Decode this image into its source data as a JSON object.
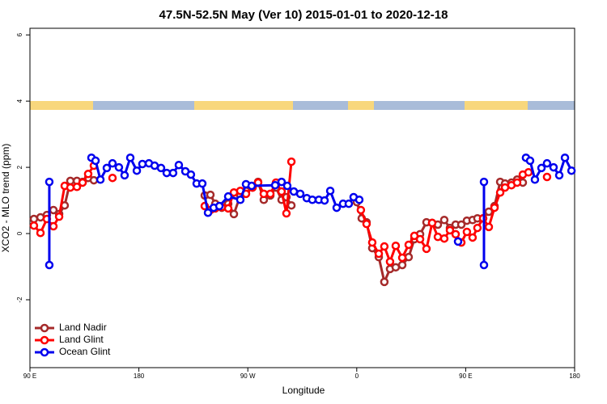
{
  "chart_data": {
    "type": "line",
    "title": "47.5N-52.5N May (Ver 10)   2015-01-01 to 2020-12-18",
    "x_label": "Longitude",
    "y_label": "XCO2 - MLO trend (ppm)",
    "xlim": [
      90,
      540
    ],
    "xticks": [
      {
        "value": 90,
        "label": "90 E"
      },
      {
        "value": 180,
        "label": "180"
      },
      {
        "value": 270,
        "label": "90 W"
      },
      {
        "value": 360,
        "label": "0"
      },
      {
        "value": 450,
        "label": "90 E"
      },
      {
        "value": 540,
        "label": "180"
      }
    ],
    "ylim": [
      -4.05,
      6.2
    ],
    "yticks": [
      -2,
      0,
      2,
      4,
      6
    ],
    "legend": "bottom-left",
    "series": [
      {
        "name": "Land Nadir",
        "color": "#a52a2a",
        "x": [
          93.3,
          98.7,
          104.0,
          109.4,
          114.1,
          118.7,
          123.4,
          128.8,
          133.5,
          138.1,
          142.8,
          null,
          234.4,
          239.1,
          243.1,
          248.5,
          253.8,
          258.5,
          263.8,
          268.5,
          273.9,
          278.5,
          283.2,
          288.6,
          293.3,
          297.9,
          301.9,
          306.0,
          null,
          360.1,
          364.1,
          368.1,
          372.8,
          378.2,
          382.8,
          387.5,
          392.2,
          397.6,
          402.9,
          407.6,
          412.3,
          417.6,
          422.3,
          427.0,
          432.3,
          437.0,
          441.7,
          446.4,
          451.0,
          455.7,
          459.7,
          464.4,
          469.1,
          473.8,
          478.5,
          482.5,
          487.8,
          492.5,
          497.2
        ],
        "values": [
          0.44,
          0.49,
          0.56,
          0.71,
          0.59,
          0.85,
          1.59,
          1.59,
          1.56,
          1.68,
          1.61,
          null,
          1.15,
          1.17,
          0.9,
          0.78,
          0.9,
          0.59,
          1.15,
          1.29,
          1.39,
          1.56,
          1.02,
          1.15,
          1.39,
          1.02,
          1.1,
          0.85,
          null,
          0.95,
          0.46,
          0.34,
          -0.44,
          -0.71,
          -1.46,
          -1.07,
          -1.02,
          -0.95,
          -0.71,
          -0.17,
          -0.02,
          0.34,
          0.32,
          0.27,
          0.41,
          0.17,
          0.27,
          0.27,
          0.39,
          0.41,
          0.46,
          0.46,
          0.66,
          0.83,
          1.56,
          1.51,
          1.54,
          1.63,
          1.54
        ]
      },
      {
        "name": "Land Glint",
        "color": "#ff0000",
        "x": [
          93.3,
          98.7,
          104.0,
          109.4,
          114.1,
          118.7,
          123.4,
          128.8,
          133.5,
          138.1,
          142.8,
          null,
          158.2,
          null,
          234.4,
          239.1,
          243.1,
          248.5,
          253.8,
          258.5,
          263.8,
          268.5,
          273.9,
          278.5,
          283.2,
          288.6,
          293.3,
          297.9,
          301.9,
          306.0,
          null,
          363.4,
          368.1,
          372.8,
          378.2,
          382.8,
          387.5,
          392.2,
          397.6,
          402.9,
          407.6,
          412.3,
          417.6,
          422.3,
          427.0,
          432.3,
          437.0,
          441.7,
          446.4,
          451.0,
          455.7,
          459.7,
          464.4,
          469.1,
          473.8,
          478.5,
          482.5,
          487.8,
          492.5,
          497.2,
          501.9,
          null,
          517.2
        ],
        "values": [
          0.24,
          0.02,
          0.44,
          0.22,
          0.51,
          1.44,
          1.39,
          1.41,
          1.54,
          1.8,
          2.05,
          null,
          1.68,
          null,
          0.83,
          0.71,
          0.76,
          0.8,
          0.76,
          1.24,
          1.29,
          1.2,
          1.39,
          1.54,
          1.2,
          1.2,
          1.54,
          1.27,
          0.61,
          2.17,
          null,
          0.71,
          0.29,
          -0.27,
          -0.61,
          -0.39,
          -0.85,
          -0.37,
          -0.73,
          -0.34,
          -0.07,
          -0.17,
          -0.46,
          0.32,
          -0.1,
          -0.15,
          0.1,
          -0.02,
          -0.27,
          0.05,
          -0.12,
          0.17,
          0.46,
          0.2,
          0.78,
          1.24,
          1.39,
          1.46,
          1.54,
          1.78,
          1.85,
          null,
          1.71
        ]
      },
      {
        "name": "Ocean Glint",
        "color": "#0000ee",
        "x": [
          106.0,
          106.0,
          null,
          140.8,
          144.2,
          148.2,
          153.5,
          158.2,
          163.5,
          168.2,
          172.9,
          178.3,
          182.9,
          188.3,
          193.0,
          198.3,
          203.0,
          208.3,
          213.0,
          218.4,
          223.0,
          227.7,
          232.4,
          237.1,
          241.8,
          246.5,
          253.8,
          263.8,
          268.5,
          273.2,
          292.6,
          297.9,
          302.6,
          308.0,
          313.3,
          318.7,
          323.3,
          328.7,
          333.4,
          338.1,
          343.4,
          348.7,
          353.4,
          357.4,
          362.1,
          null,
          443.7,
          null,
          465.1,
          465.1,
          null,
          499.8,
          503.2,
          507.2,
          512.6,
          517.2,
          522.6,
          527.3,
          532.0,
          537.4
        ],
        "values": [
          1.56,
          -0.95,
          null,
          2.29,
          2.2,
          1.63,
          1.98,
          2.12,
          2.0,
          1.76,
          2.29,
          1.9,
          2.1,
          2.12,
          2.05,
          1.98,
          1.83,
          1.83,
          2.07,
          1.88,
          1.78,
          1.51,
          1.51,
          0.63,
          0.78,
          0.83,
          1.12,
          1.02,
          1.49,
          1.44,
          1.46,
          1.56,
          1.44,
          1.27,
          1.2,
          1.07,
          1.02,
          1.02,
          1.0,
          1.29,
          0.78,
          0.9,
          0.9,
          1.1,
          1.02,
          null,
          -0.24,
          null,
          1.56,
          -0.95,
          null,
          2.29,
          2.2,
          1.63,
          1.98,
          2.12,
          2.0,
          1.76,
          2.29,
          1.9
        ]
      }
    ]
  }
}
